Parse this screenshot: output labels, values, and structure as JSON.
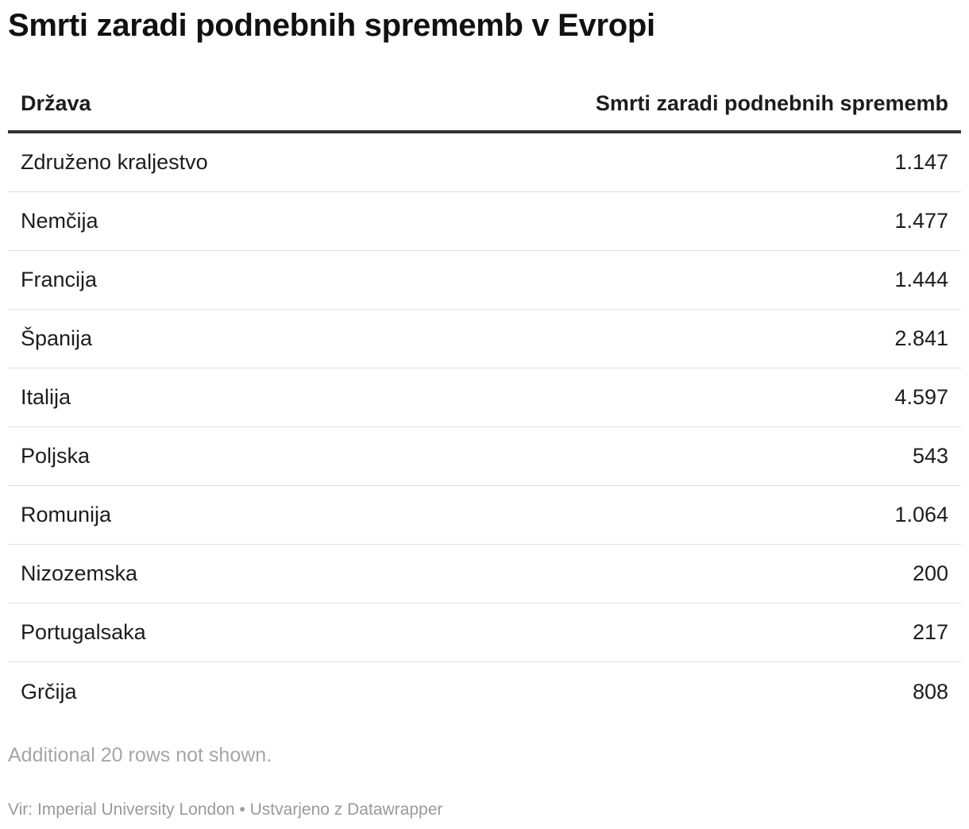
{
  "title": "Smrti zaradi podnebnih sprememb v Evropi",
  "columns": [
    "Država",
    "Smrti zaradi podnebnih sprememb"
  ],
  "rows": [
    {
      "country": "Združeno kraljestvo",
      "value": "1.147"
    },
    {
      "country": "Nemčija",
      "value": "1.477"
    },
    {
      "country": "Francija",
      "value": "1.444"
    },
    {
      "country": "Španija",
      "value": "2.841"
    },
    {
      "country": "Italija",
      "value": "4.597"
    },
    {
      "country": "Poljska",
      "value": "543"
    },
    {
      "country": "Romunija",
      "value": "1.064"
    },
    {
      "country": "Nizozemska",
      "value": "200"
    },
    {
      "country": "Portugalsaka",
      "value": "217"
    },
    {
      "country": "Grčija",
      "value": "808"
    }
  ],
  "note": "Additional 20 rows not shown.",
  "footer": "Vir: Imperial University London • Ustvarjeno z Datawrapper",
  "chart_data": {
    "type": "table",
    "columns": [
      "Država",
      "Smrti zaradi podnebnih sprememb"
    ],
    "categories": [
      "Združeno kraljestvo",
      "Nemčija",
      "Francija",
      "Španija",
      "Italija",
      "Poljska",
      "Romunija",
      "Nizozemska",
      "Portugalsaka",
      "Grčija"
    ],
    "values": [
      1147,
      1477,
      1444,
      2841,
      4597,
      543,
      1064,
      200,
      217,
      808
    ]
  }
}
